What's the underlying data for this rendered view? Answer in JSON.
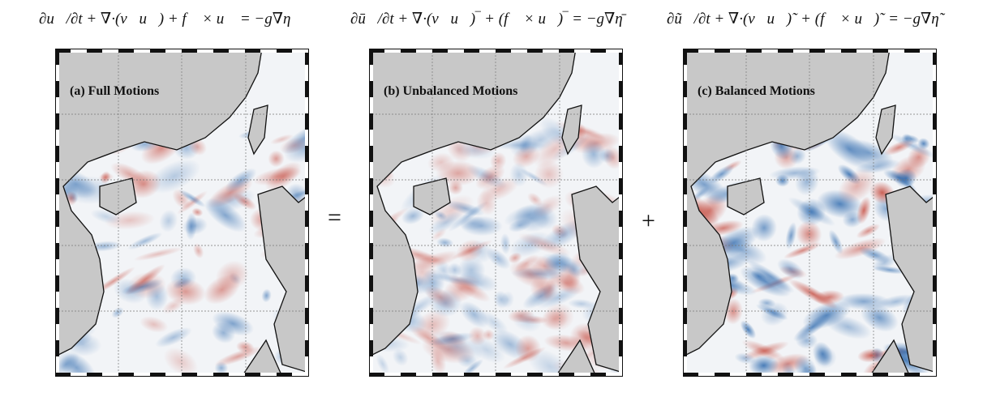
{
  "equations": [
    "∂u⃗/∂t + ∇·(v⃗u⃗) + f⃗ × u⃗ = −g∇η",
    "∂ū⃗/∂t + ∇·(v⃗u⃗)‾ + (f⃗ × u⃗)‾ = −g∇η̄",
    "∂ũ⃗/∂t + ∇·(v⃗u⃗)˜ + (f⃗ × u⃗)˜ = −g∇η̃"
  ],
  "operators": {
    "equals": "=",
    "plus": "+"
  },
  "panels": [
    {
      "label": "(a) Full Motions",
      "style": "full"
    },
    {
      "label": "(b) Unbalanced Motions",
      "style": "unbalanced"
    },
    {
      "label": "(c) Balanced Motions",
      "style": "balanced"
    }
  ],
  "colors": {
    "land": "#c8c8c8",
    "positive": "#c0392b",
    "negative": "#1f5fa8",
    "ocean": "#f2f4f7"
  }
}
